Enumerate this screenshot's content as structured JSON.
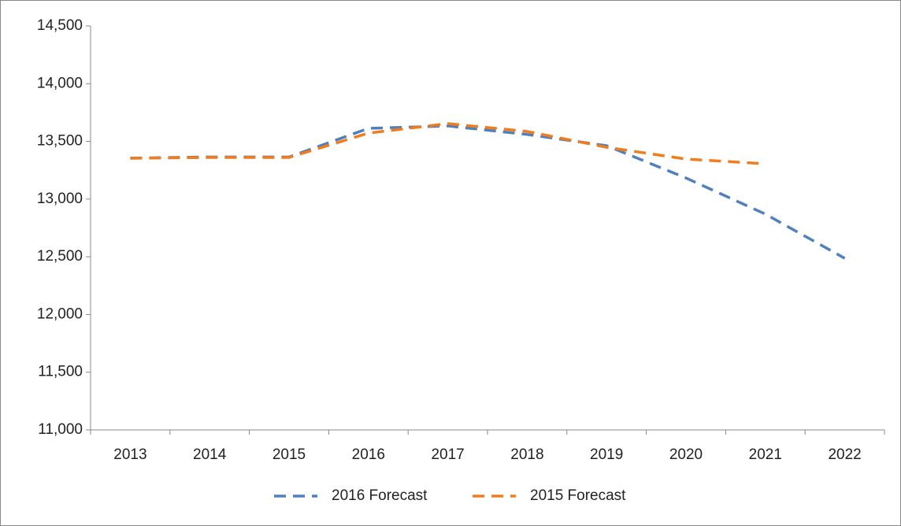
{
  "chart_data": {
    "type": "line",
    "categories": [
      "2013",
      "2014",
      "2015",
      "2016",
      "2017",
      "2018",
      "2019",
      "2020",
      "2021",
      "2022"
    ],
    "series": [
      {
        "name": "2016 Forecast",
        "color": "#4f81bd",
        "values": [
          13355,
          13365,
          13365,
          13613,
          13634,
          13560,
          13463,
          13183,
          12870,
          12487
        ]
      },
      {
        "name": "2015 Forecast",
        "color": "#f07c1d",
        "values": [
          13354,
          13361,
          13361,
          13572,
          13654,
          13586,
          13449,
          13347,
          13306,
          null
        ]
      }
    ],
    "ylim": [
      11000,
      14500
    ],
    "yticks": [
      {
        "value": 11000,
        "label": "11,000"
      },
      {
        "value": 11500,
        "label": "11,500"
      },
      {
        "value": 12000,
        "label": "12,000"
      },
      {
        "value": 12500,
        "label": "12,500"
      },
      {
        "value": 13000,
        "label": "13,000"
      },
      {
        "value": 13500,
        "label": "13,500"
      },
      {
        "value": 14000,
        "label": "14,000"
      },
      {
        "value": 14500,
        "label": "14,500"
      }
    ],
    "grid": false,
    "legend": "bottom"
  }
}
